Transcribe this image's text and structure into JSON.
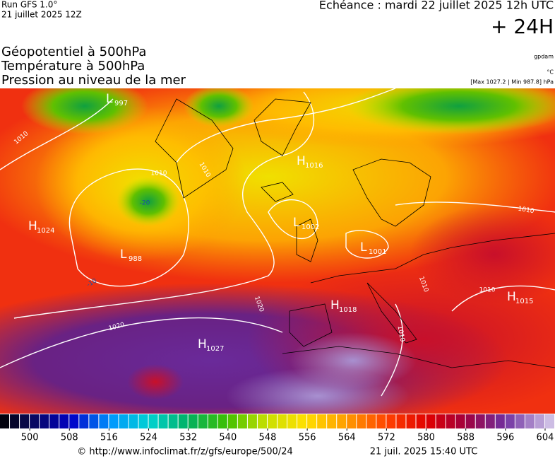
{
  "header": {
    "run": "Run GFS 1.0°",
    "date": "21 juillet 2025 12Z",
    "echeance": "Echéance : mardi 22 juillet 2025 12h UTC",
    "lead": "+ 24H"
  },
  "titles": [
    "Géopotentiel à 500hPa",
    "Température à 500hPa",
    "Pression au niveau de la mer"
  ],
  "units": [
    "gpdam",
    "°C",
    "[Max 1027.2 | Min 987.8] hPa"
  ],
  "pressure_centers": [
    {
      "letter": "L",
      "value": "997"
    },
    {
      "letter": "H",
      "value": "1016"
    },
    {
      "letter": "H",
      "value": "1024"
    },
    {
      "letter": "L",
      "value": "1002"
    },
    {
      "letter": "L",
      "value": "1001"
    },
    {
      "letter": "L",
      "value": "988"
    },
    {
      "letter": "H",
      "value": "1018"
    },
    {
      "letter": "H",
      "value": "1015"
    },
    {
      "letter": "H",
      "value": "1027"
    }
  ],
  "contour_labels": [
    "1010",
    "1010",
    "1010",
    "1020",
    "1020",
    "1010",
    "1010",
    "1010",
    "1010",
    "-20",
    "-10"
  ],
  "colorbar": {
    "lim": [
      494,
      606
    ],
    "ticks": [
      500,
      508,
      516,
      524,
      532,
      540,
      548,
      556,
      564,
      572,
      580,
      588,
      596,
      604
    ]
  },
  "footer": {
    "source": "© http://www.infoclimat.fr/z/gfs/europe/500/24",
    "generated": "21 juil. 2025 15:40 UTC"
  }
}
